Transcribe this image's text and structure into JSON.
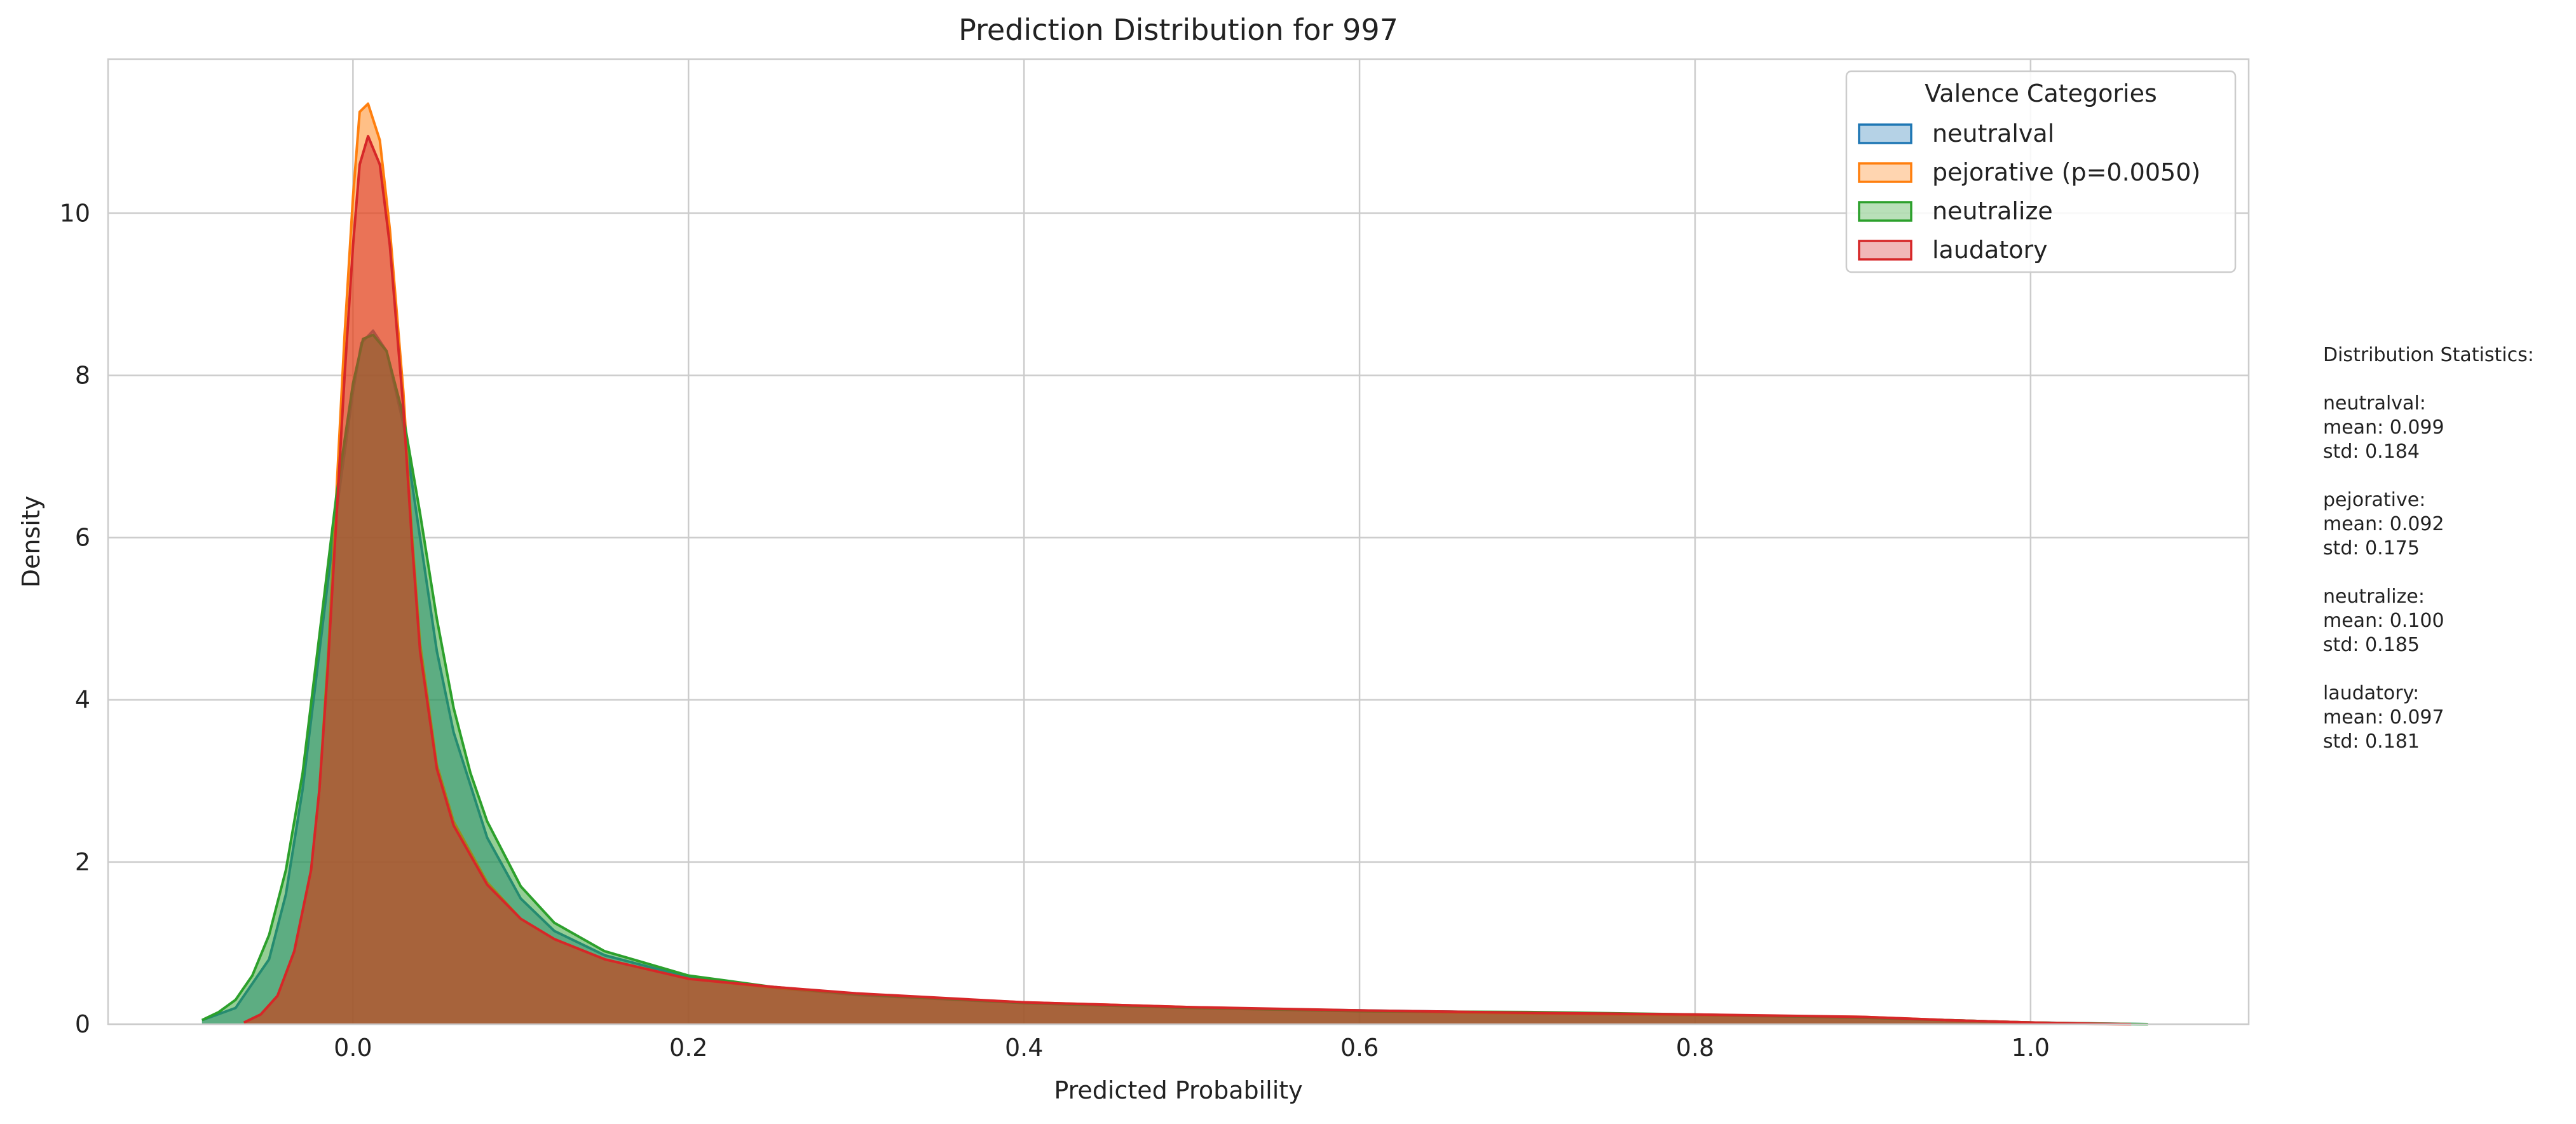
{
  "chart_data": {
    "type": "area",
    "title": "Prediction Distribution for 997",
    "xlabel": "Predicted Probability",
    "ylabel": "Density",
    "xlim": [
      -0.146,
      1.13
    ],
    "ylim": [
      0,
      11.9
    ],
    "xticks": [
      0.0,
      0.2,
      0.4,
      0.6,
      0.8,
      1.0
    ],
    "xtick_labels": [
      "0.0",
      "0.2",
      "0.4",
      "0.6",
      "0.8",
      "1.0"
    ],
    "yticks": [
      0,
      2,
      4,
      6,
      8,
      10
    ],
    "ytick_labels": [
      "0",
      "2",
      "4",
      "6",
      "8",
      "10"
    ],
    "grid": true,
    "legend": {
      "title": "Valence Categories",
      "position": "top-right",
      "entries": [
        "neutralval",
        "pejorative (p=0.0050)",
        "neutralize",
        "laudatory"
      ]
    },
    "series": [
      {
        "name": "neutralval",
        "color": "#1f77b4",
        "points": [
          [
            -0.09,
            0.05
          ],
          [
            -0.07,
            0.2
          ],
          [
            -0.05,
            0.8
          ],
          [
            -0.04,
            1.6
          ],
          [
            -0.03,
            2.9
          ],
          [
            -0.02,
            4.6
          ],
          [
            -0.01,
            6.3
          ],
          [
            0.0,
            7.8
          ],
          [
            0.005,
            8.4
          ],
          [
            0.012,
            8.55
          ],
          [
            0.02,
            8.3
          ],
          [
            0.03,
            7.4
          ],
          [
            0.04,
            6.0
          ],
          [
            0.05,
            4.6
          ],
          [
            0.06,
            3.6
          ],
          [
            0.08,
            2.3
          ],
          [
            0.1,
            1.55
          ],
          [
            0.12,
            1.15
          ],
          [
            0.15,
            0.85
          ],
          [
            0.2,
            0.58
          ],
          [
            0.25,
            0.45
          ],
          [
            0.3,
            0.36
          ],
          [
            0.4,
            0.26
          ],
          [
            0.5,
            0.2
          ],
          [
            0.6,
            0.17
          ],
          [
            0.7,
            0.14
          ],
          [
            0.8,
            0.11
          ],
          [
            0.9,
            0.08
          ],
          [
            0.95,
            0.05
          ],
          [
            1.0,
            0.02
          ],
          [
            1.05,
            0.005
          ],
          [
            1.07,
            0.0
          ]
        ]
      },
      {
        "name": "pejorative (p=0.0050)",
        "color": "#ff7f0e",
        "points": [
          [
            -0.065,
            0.02
          ],
          [
            -0.055,
            0.12
          ],
          [
            -0.045,
            0.35
          ],
          [
            -0.035,
            0.9
          ],
          [
            -0.025,
            1.9
          ],
          [
            -0.02,
            2.9
          ],
          [
            -0.015,
            4.5
          ],
          [
            -0.01,
            6.5
          ],
          [
            -0.005,
            8.5
          ],
          [
            0.0,
            10.2
          ],
          [
            0.004,
            11.25
          ],
          [
            0.009,
            11.35
          ],
          [
            0.016,
            10.9
          ],
          [
            0.022,
            9.8
          ],
          [
            0.03,
            7.8
          ],
          [
            0.035,
            6.1
          ],
          [
            0.04,
            4.7
          ],
          [
            0.05,
            3.2
          ],
          [
            0.06,
            2.5
          ],
          [
            0.08,
            1.75
          ],
          [
            0.1,
            1.3
          ],
          [
            0.12,
            1.05
          ],
          [
            0.15,
            0.8
          ],
          [
            0.2,
            0.56
          ],
          [
            0.25,
            0.45
          ],
          [
            0.3,
            0.37
          ],
          [
            0.4,
            0.27
          ],
          [
            0.5,
            0.21
          ],
          [
            0.6,
            0.16
          ],
          [
            0.7,
            0.13
          ],
          [
            0.8,
            0.11
          ],
          [
            0.9,
            0.09
          ],
          [
            0.95,
            0.05
          ],
          [
            1.0,
            0.02
          ],
          [
            1.04,
            0.005
          ],
          [
            1.06,
            0.0
          ]
        ]
      },
      {
        "name": "neutralize",
        "color": "#2ca02c",
        "points": [
          [
            -0.09,
            0.05
          ],
          [
            -0.08,
            0.15
          ],
          [
            -0.07,
            0.3
          ],
          [
            -0.06,
            0.6
          ],
          [
            -0.05,
            1.1
          ],
          [
            -0.04,
            1.9
          ],
          [
            -0.03,
            3.1
          ],
          [
            -0.02,
            4.8
          ],
          [
            -0.01,
            6.5
          ],
          [
            0.0,
            7.9
          ],
          [
            0.006,
            8.45
          ],
          [
            0.012,
            8.5
          ],
          [
            0.02,
            8.3
          ],
          [
            0.03,
            7.5
          ],
          [
            0.04,
            6.3
          ],
          [
            0.05,
            5.0
          ],
          [
            0.06,
            3.9
          ],
          [
            0.07,
            3.1
          ],
          [
            0.08,
            2.5
          ],
          [
            0.1,
            1.7
          ],
          [
            0.12,
            1.25
          ],
          [
            0.15,
            0.9
          ],
          [
            0.2,
            0.6
          ],
          [
            0.25,
            0.46
          ],
          [
            0.3,
            0.37
          ],
          [
            0.4,
            0.26
          ],
          [
            0.5,
            0.2
          ],
          [
            0.6,
            0.16
          ],
          [
            0.7,
            0.15
          ],
          [
            0.8,
            0.12
          ],
          [
            0.9,
            0.08
          ],
          [
            0.95,
            0.05
          ],
          [
            1.0,
            0.02
          ],
          [
            1.05,
            0.005
          ],
          [
            1.07,
            0.0
          ]
        ]
      },
      {
        "name": "laudatory",
        "color": "#d62728",
        "points": [
          [
            -0.065,
            0.02
          ],
          [
            -0.055,
            0.12
          ],
          [
            -0.045,
            0.35
          ],
          [
            -0.035,
            0.9
          ],
          [
            -0.025,
            1.9
          ],
          [
            -0.02,
            2.9
          ],
          [
            -0.015,
            4.4
          ],
          [
            -0.01,
            6.2
          ],
          [
            -0.005,
            8.0
          ],
          [
            0.0,
            9.6
          ],
          [
            0.004,
            10.6
          ],
          [
            0.009,
            10.95
          ],
          [
            0.016,
            10.6
          ],
          [
            0.022,
            9.6
          ],
          [
            0.03,
            7.6
          ],
          [
            0.035,
            6.0
          ],
          [
            0.04,
            4.6
          ],
          [
            0.05,
            3.15
          ],
          [
            0.06,
            2.45
          ],
          [
            0.08,
            1.72
          ],
          [
            0.1,
            1.3
          ],
          [
            0.12,
            1.05
          ],
          [
            0.15,
            0.8
          ],
          [
            0.2,
            0.56
          ],
          [
            0.25,
            0.46
          ],
          [
            0.3,
            0.38
          ],
          [
            0.4,
            0.27
          ],
          [
            0.5,
            0.21
          ],
          [
            0.6,
            0.17
          ],
          [
            0.7,
            0.14
          ],
          [
            0.8,
            0.12
          ],
          [
            0.9,
            0.09
          ],
          [
            0.95,
            0.05
          ],
          [
            1.0,
            0.02
          ],
          [
            1.04,
            0.005
          ],
          [
            1.06,
            0.0
          ]
        ]
      }
    ]
  },
  "stats_panel": {
    "lines": [
      "Distribution Statistics:",
      "",
      "neutralval:",
      "mean: 0.099",
      "std: 0.184",
      "",
      "pejorative:",
      "mean: 0.092",
      "std: 0.175",
      "",
      "neutralize:",
      "mean: 0.100",
      "std: 0.185",
      "",
      "laudatory:",
      "mean: 0.097",
      "std: 0.181"
    ]
  }
}
